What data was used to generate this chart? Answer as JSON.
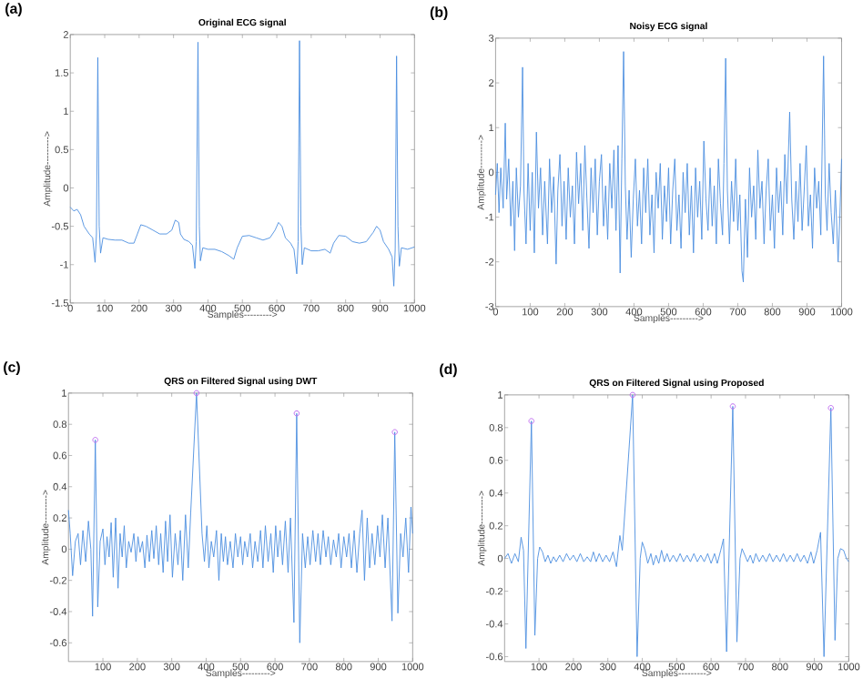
{
  "chart_data": [
    {
      "type": "line",
      "title": "Original ECG signal",
      "xlabel": "Samples--------->",
      "ylabel": "Amplitude--------->",
      "annotations": [
        "(a)"
      ],
      "xlim": [
        0,
        1000
      ],
      "ylim": [
        -1.5,
        2
      ],
      "xticks": [
        0,
        100,
        200,
        300,
        400,
        500,
        600,
        700,
        800,
        900,
        1000
      ],
      "yticks": [
        -1.5,
        -1,
        -0.5,
        0,
        0.5,
        1,
        1.5,
        2
      ],
      "series": [
        {
          "color": "#4a8ee0",
          "x": [
            0,
            10,
            20,
            30,
            40,
            55,
            65,
            72,
            76,
            80,
            84,
            88,
            95,
            110,
            130,
            150,
            170,
            185,
            195,
            205,
            220,
            240,
            260,
            280,
            295,
            305,
            315,
            320,
            330,
            345,
            355,
            362,
            366,
            371,
            375,
            378,
            385,
            400,
            420,
            440,
            460,
            475,
            485,
            500,
            520,
            540,
            560,
            580,
            595,
            605,
            615,
            625,
            640,
            650,
            658,
            662,
            666,
            670,
            674,
            680,
            700,
            720,
            740,
            755,
            765,
            780,
            800,
            820,
            840,
            860,
            880,
            890,
            900,
            910,
            925,
            935,
            940,
            944,
            948,
            952,
            956,
            962,
            980,
            1000
          ],
          "values": [
            -0.25,
            -0.3,
            -0.28,
            -0.35,
            -0.5,
            -0.6,
            -0.65,
            -0.97,
            -0.6,
            1.7,
            -0.5,
            -0.85,
            -0.65,
            -0.67,
            -0.68,
            -0.68,
            -0.72,
            -0.72,
            -0.6,
            -0.48,
            -0.5,
            -0.55,
            -0.6,
            -0.6,
            -0.55,
            -0.42,
            -0.45,
            -0.6,
            -0.67,
            -0.7,
            -0.75,
            -1.05,
            -0.7,
            1.9,
            -0.5,
            -0.95,
            -0.78,
            -0.8,
            -0.8,
            -0.83,
            -0.88,
            -0.93,
            -0.78,
            -0.63,
            -0.62,
            -0.65,
            -0.68,
            -0.65,
            -0.55,
            -0.45,
            -0.5,
            -0.65,
            -0.72,
            -0.8,
            -1.12,
            -0.7,
            1.92,
            -0.5,
            -1.0,
            -0.78,
            -0.82,
            -0.82,
            -0.8,
            -0.85,
            -0.72,
            -0.62,
            -0.63,
            -0.7,
            -0.72,
            -0.7,
            -0.58,
            -0.5,
            -0.55,
            -0.7,
            -0.8,
            -0.9,
            -1.28,
            -0.8,
            1.72,
            -0.5,
            -1.02,
            -0.78,
            -0.8,
            -0.77
          ]
        }
      ]
    },
    {
      "type": "line",
      "title": "Noisy ECG signal",
      "xlabel": "Samples--------->",
      "ylabel": "Amplitude--------->",
      "annotations": [
        "(b)"
      ],
      "xlim": [
        0,
        1000
      ],
      "ylim": [
        -3,
        3
      ],
      "xticks": [
        0,
        100,
        200,
        300,
        400,
        500,
        600,
        700,
        800,
        900,
        1000
      ],
      "yticks": [
        -3,
        -2,
        -1,
        0,
        1,
        2,
        3
      ],
      "series": [
        {
          "color": "#4a8ee0",
          "x": [
            0,
            5,
            10,
            15,
            22,
            28,
            32,
            38,
            44,
            50,
            55,
            60,
            66,
            72,
            78,
            82,
            88,
            94,
            100,
            106,
            112,
            118,
            124,
            130,
            136,
            142,
            150,
            156,
            162,
            168,
            175,
            180,
            186,
            192,
            198,
            204,
            210,
            216,
            222,
            228,
            234,
            240,
            246,
            252,
            258,
            264,
            270,
            276,
            282,
            288,
            294,
            300,
            306,
            312,
            318,
            324,
            330,
            336,
            342,
            348,
            354,
            360,
            365,
            370,
            375,
            380,
            386,
            392,
            398,
            404,
            410,
            416,
            422,
            428,
            434,
            440,
            446,
            452,
            458,
            464,
            470,
            476,
            482,
            488,
            494,
            500,
            506,
            512,
            518,
            524,
            530,
            536,
            542,
            548,
            554,
            560,
            566,
            572,
            578,
            584,
            590,
            596,
            602,
            608,
            614,
            620,
            626,
            632,
            638,
            644,
            650,
            656,
            660,
            665,
            670,
            676,
            682,
            688,
            694,
            700,
            706,
            712,
            716,
            722,
            728,
            734,
            740,
            746,
            752,
            758,
            764,
            770,
            776,
            782,
            788,
            794,
            800,
            806,
            812,
            818,
            824,
            830,
            836,
            842,
            850,
            856,
            862,
            868,
            874,
            880,
            886,
            892,
            898,
            904,
            910,
            916,
            922,
            928,
            934,
            940,
            948,
            953,
            958,
            964,
            970,
            976,
            982,
            990,
            995,
            1000
          ],
          "values": [
            -0.5,
            0.2,
            -0.9,
            0.1,
            -0.8,
            1.1,
            -0.6,
            0.3,
            -1.2,
            -0.2,
            -1.75,
            0.1,
            -1.0,
            -0.3,
            2.35,
            -0.4,
            -1.6,
            0.2,
            -1.3,
            0.0,
            -1.8,
            0.9,
            -0.8,
            0.1,
            -1.4,
            -0.2,
            -1.6,
            0.3,
            -0.9,
            -0.1,
            -2.05,
            -0.4,
            0.4,
            -1.2,
            -0.2,
            -1.5,
            0.1,
            -1.0,
            -0.3,
            -1.6,
            0.45,
            -0.7,
            0.2,
            -1.3,
            0.6,
            -0.6,
            -1.7,
            0.1,
            -0.9,
            0.3,
            -1.4,
            -0.2,
            0.4,
            -1.2,
            -0.3,
            -1.5,
            0.2,
            -0.8,
            0.5,
            -1.3,
            0.6,
            -2.25,
            0.3,
            2.7,
            -0.3,
            -1.5,
            -0.4,
            -1.9,
            -0.6,
            0.3,
            -1.2,
            -0.4,
            -1.6,
            0.1,
            -0.9,
            0.3,
            -1.4,
            -0.5,
            -1.8,
            0.0,
            -0.8,
            0.2,
            -1.5,
            -0.3,
            -1.1,
            0.1,
            -1.6,
            -0.4,
            0.3,
            -1.3,
            -0.5,
            -1.7,
            0.0,
            -0.9,
            0.2,
            -1.4,
            -0.3,
            -1.8,
            0.1,
            -1.0,
            -0.2,
            -1.5,
            0.7,
            -0.6,
            -1.3,
            0.1,
            -1.2,
            -0.3,
            -1.6,
            0.3,
            -0.7,
            -1.4,
            0.2,
            2.55,
            -0.4,
            -1.6,
            -0.2,
            -1.1,
            0.3,
            -1.3,
            -0.5,
            -2.2,
            -2.45,
            -0.6,
            -1.9,
            0.1,
            -1.0,
            -0.3,
            -1.5,
            0.5,
            -0.8,
            -0.2,
            -1.6,
            -0.4,
            0.3,
            -1.3,
            -0.5,
            -1.7,
            0.1,
            -0.9,
            -0.2,
            -1.4,
            0.4,
            -0.7,
            1.35,
            -0.6,
            -1.5,
            -0.2,
            -1.1,
            0.2,
            -1.3,
            -0.4,
            0.6,
            -1.2,
            -0.5,
            -1.7,
            0.1,
            -0.8,
            -0.2,
            -1.4,
            2.6,
            -0.5,
            -1.3,
            0.2,
            -0.9,
            -1.6,
            -0.4,
            -2.0,
            -1.0,
            0.3
          ]
        }
      ]
    },
    {
      "type": "line",
      "title": "QRS on Filtered Signal using DWT",
      "xlabel": "Samples--------->",
      "ylabel": "Amplitude--------->",
      "annotations": [
        "(c)"
      ],
      "xlim": [
        0,
        1000
      ],
      "ylim": [
        -0.72,
        1
      ],
      "xticks": [
        100,
        200,
        300,
        400,
        500,
        600,
        700,
        800,
        900,
        1000
      ],
      "yticks": [
        -0.6,
        -0.4,
        -0.2,
        0,
        0.2,
        0.4,
        0.6,
        0.8,
        1
      ],
      "series": [
        {
          "color": "#4a8ee0",
          "x": [
            0,
            5,
            12,
            20,
            28,
            35,
            42,
            50,
            58,
            65,
            70,
            78,
            85,
            92,
            100,
            106,
            112,
            118,
            124,
            130,
            137,
            144,
            150,
            156,
            162,
            168,
            175,
            182,
            190,
            196,
            202,
            208,
            215,
            222,
            228,
            235,
            242,
            248,
            255,
            262,
            268,
            275,
            282,
            288,
            295,
            302,
            310,
            318,
            325,
            332,
            340,
            348,
            355,
            363,
            372,
            380,
            388,
            395,
            402,
            408,
            415,
            422,
            430,
            437,
            444,
            450,
            456,
            462,
            470,
            478,
            485,
            492,
            500,
            506,
            512,
            520,
            528,
            535,
            542,
            550,
            558,
            565,
            572,
            580,
            588,
            595,
            602,
            608,
            615,
            622,
            630,
            638,
            645,
            655,
            663,
            672,
            680,
            688,
            695,
            702,
            710,
            718,
            725,
            732,
            740,
            748,
            755,
            762,
            770,
            778,
            785,
            792,
            800,
            808,
            815,
            822,
            830,
            838,
            846,
            853,
            860,
            868,
            875,
            882,
            890,
            898,
            905,
            912,
            920,
            928,
            940,
            948,
            957,
            965,
            972,
            980,
            988,
            995,
            1000
          ],
          "values": [
            0.25,
            0.1,
            -0.17,
            0.05,
            0.1,
            -0.1,
            0.12,
            -0.08,
            0.18,
            0.0,
            -0.43,
            0.7,
            -0.37,
            0.05,
            0.13,
            -0.1,
            0.08,
            -0.05,
            0.17,
            -0.18,
            0.2,
            -0.25,
            0.1,
            -0.05,
            0.15,
            -0.12,
            0.05,
            -0.02,
            0.1,
            -0.08,
            0.08,
            -0.02,
            0.05,
            -0.12,
            0.09,
            -0.08,
            0.12,
            -0.06,
            0.15,
            -0.1,
            0.1,
            -0.15,
            0.18,
            -0.08,
            0.22,
            -0.18,
            0.1,
            -0.1,
            0.12,
            -0.2,
            0.22,
            -0.12,
            0.23,
            null,
            1.0,
            null,
            0.1,
            -0.08,
            0.15,
            -0.12,
            0.05,
            -0.05,
            0.12,
            -0.2,
            0.1,
            -0.08,
            0.08,
            -0.1,
            0.05,
            -0.12,
            0.1,
            -0.05,
            0.08,
            -0.1,
            0.05,
            -0.05,
            0.1,
            -0.12,
            0.05,
            -0.08,
            0.12,
            -0.12,
            0.15,
            -0.08,
            0.1,
            -0.15,
            0.15,
            -0.05,
            0.12,
            -0.1,
            0.18,
            -0.15,
            0.2,
            -0.47,
            0.87,
            -0.6,
            0.1,
            -0.12,
            0.08,
            -0.1,
            0.12,
            -0.08,
            0.1,
            -0.1,
            0.12,
            -0.05,
            0.08,
            -0.1,
            0.06,
            -0.05,
            0.1,
            -0.12,
            0.08,
            -0.05,
            0.1,
            -0.12,
            0.12,
            -0.15,
            0.1,
            0.25,
            -0.2,
            0.2,
            -0.12,
            0.1,
            -0.1,
            0.15,
            -0.05,
            0.22,
            -0.12,
            0.2,
            -0.46,
            0.75,
            -0.41,
            0.1,
            -0.05,
            0.2,
            -0.15,
            0.27,
            0.1
          ]
        },
        {
          "type": "scatter",
          "color": "#c070f0",
          "marker": "circle",
          "x": [
            78,
            372,
            663,
            948
          ],
          "values": [
            0.7,
            1.0,
            0.87,
            0.75
          ]
        }
      ]
    },
    {
      "type": "line",
      "title": "QRS on Filtered Signal using Proposed",
      "xlabel": "Samples--------->",
      "ylabel": "Amplitude--------->",
      "annotations": [
        "(d)"
      ],
      "xlim": [
        0,
        1000
      ],
      "ylim": [
        -0.63,
        1
      ],
      "xticks": [
        100,
        200,
        300,
        400,
        500,
        600,
        700,
        800,
        900,
        1000
      ],
      "yticks": [
        -0.6,
        -0.4,
        -0.2,
        0,
        0.2,
        0.4,
        0.6,
        0.8,
        1
      ],
      "series": [
        {
          "color": "#4a8ee0",
          "x": [
            0,
            10,
            20,
            30,
            40,
            48,
            55,
            62,
            78,
            88,
            96,
            102,
            110,
            118,
            126,
            134,
            142,
            150,
            160,
            170,
            180,
            190,
            200,
            210,
            220,
            230,
            240,
            250,
            258,
            266,
            275,
            285,
            295,
            305,
            315,
            325,
            335,
            342,
            356,
            372,
            385,
            394,
            400,
            408,
            416,
            425,
            432,
            440,
            448,
            456,
            464,
            472,
            480,
            490,
            500,
            510,
            520,
            530,
            540,
            550,
            560,
            570,
            580,
            590,
            600,
            610,
            618,
            628,
            636,
            645,
            663,
            675,
            684,
            690,
            698,
            706,
            714,
            722,
            730,
            740,
            750,
            760,
            770,
            780,
            790,
            800,
            810,
            820,
            830,
            840,
            850,
            860,
            870,
            880,
            890,
            898,
            908,
            918,
            928,
            948,
            960,
            968,
            976,
            985,
            993,
            1000
          ],
          "values": [
            0.0,
            0.03,
            -0.03,
            0.03,
            -0.02,
            0.13,
            0.05,
            -0.55,
            0.84,
            -0.47,
            0.0,
            0.07,
            0.04,
            -0.02,
            0.02,
            -0.03,
            0.01,
            -0.02,
            0.02,
            -0.02,
            0.03,
            -0.01,
            0.02,
            -0.02,
            0.03,
            -0.02,
            0.01,
            -0.02,
            0.04,
            -0.02,
            0.03,
            -0.02,
            0.02,
            -0.02,
            0.04,
            -0.05,
            0.14,
            0.05,
            null,
            1.0,
            -0.6,
            0.0,
            0.1,
            0.05,
            -0.03,
            0.03,
            -0.04,
            0.02,
            -0.03,
            0.05,
            -0.02,
            0.03,
            -0.02,
            0.02,
            -0.02,
            0.03,
            -0.02,
            0.02,
            -0.02,
            0.03,
            -0.02,
            0.02,
            -0.02,
            0.03,
            -0.03,
            0.03,
            -0.03,
            0.05,
            0.12,
            -0.57,
            0.93,
            -0.51,
            0.0,
            0.06,
            0.02,
            -0.02,
            0.02,
            -0.03,
            0.03,
            -0.02,
            0.02,
            -0.02,
            0.03,
            -0.02,
            0.02,
            -0.02,
            0.03,
            -0.02,
            0.02,
            -0.02,
            0.03,
            -0.02,
            0.02,
            -0.03,
            0.04,
            -0.03,
            0.05,
            0.16,
            -0.6,
            0.92,
            -0.5,
            0.0,
            0.06,
            0.05,
            0.0,
            -0.02
          ]
        },
        {
          "type": "scatter",
          "color": "#c070f0",
          "marker": "circle",
          "x": [
            78,
            372,
            663,
            948
          ],
          "values": [
            0.84,
            1.0,
            0.93,
            0.92
          ]
        }
      ]
    }
  ]
}
